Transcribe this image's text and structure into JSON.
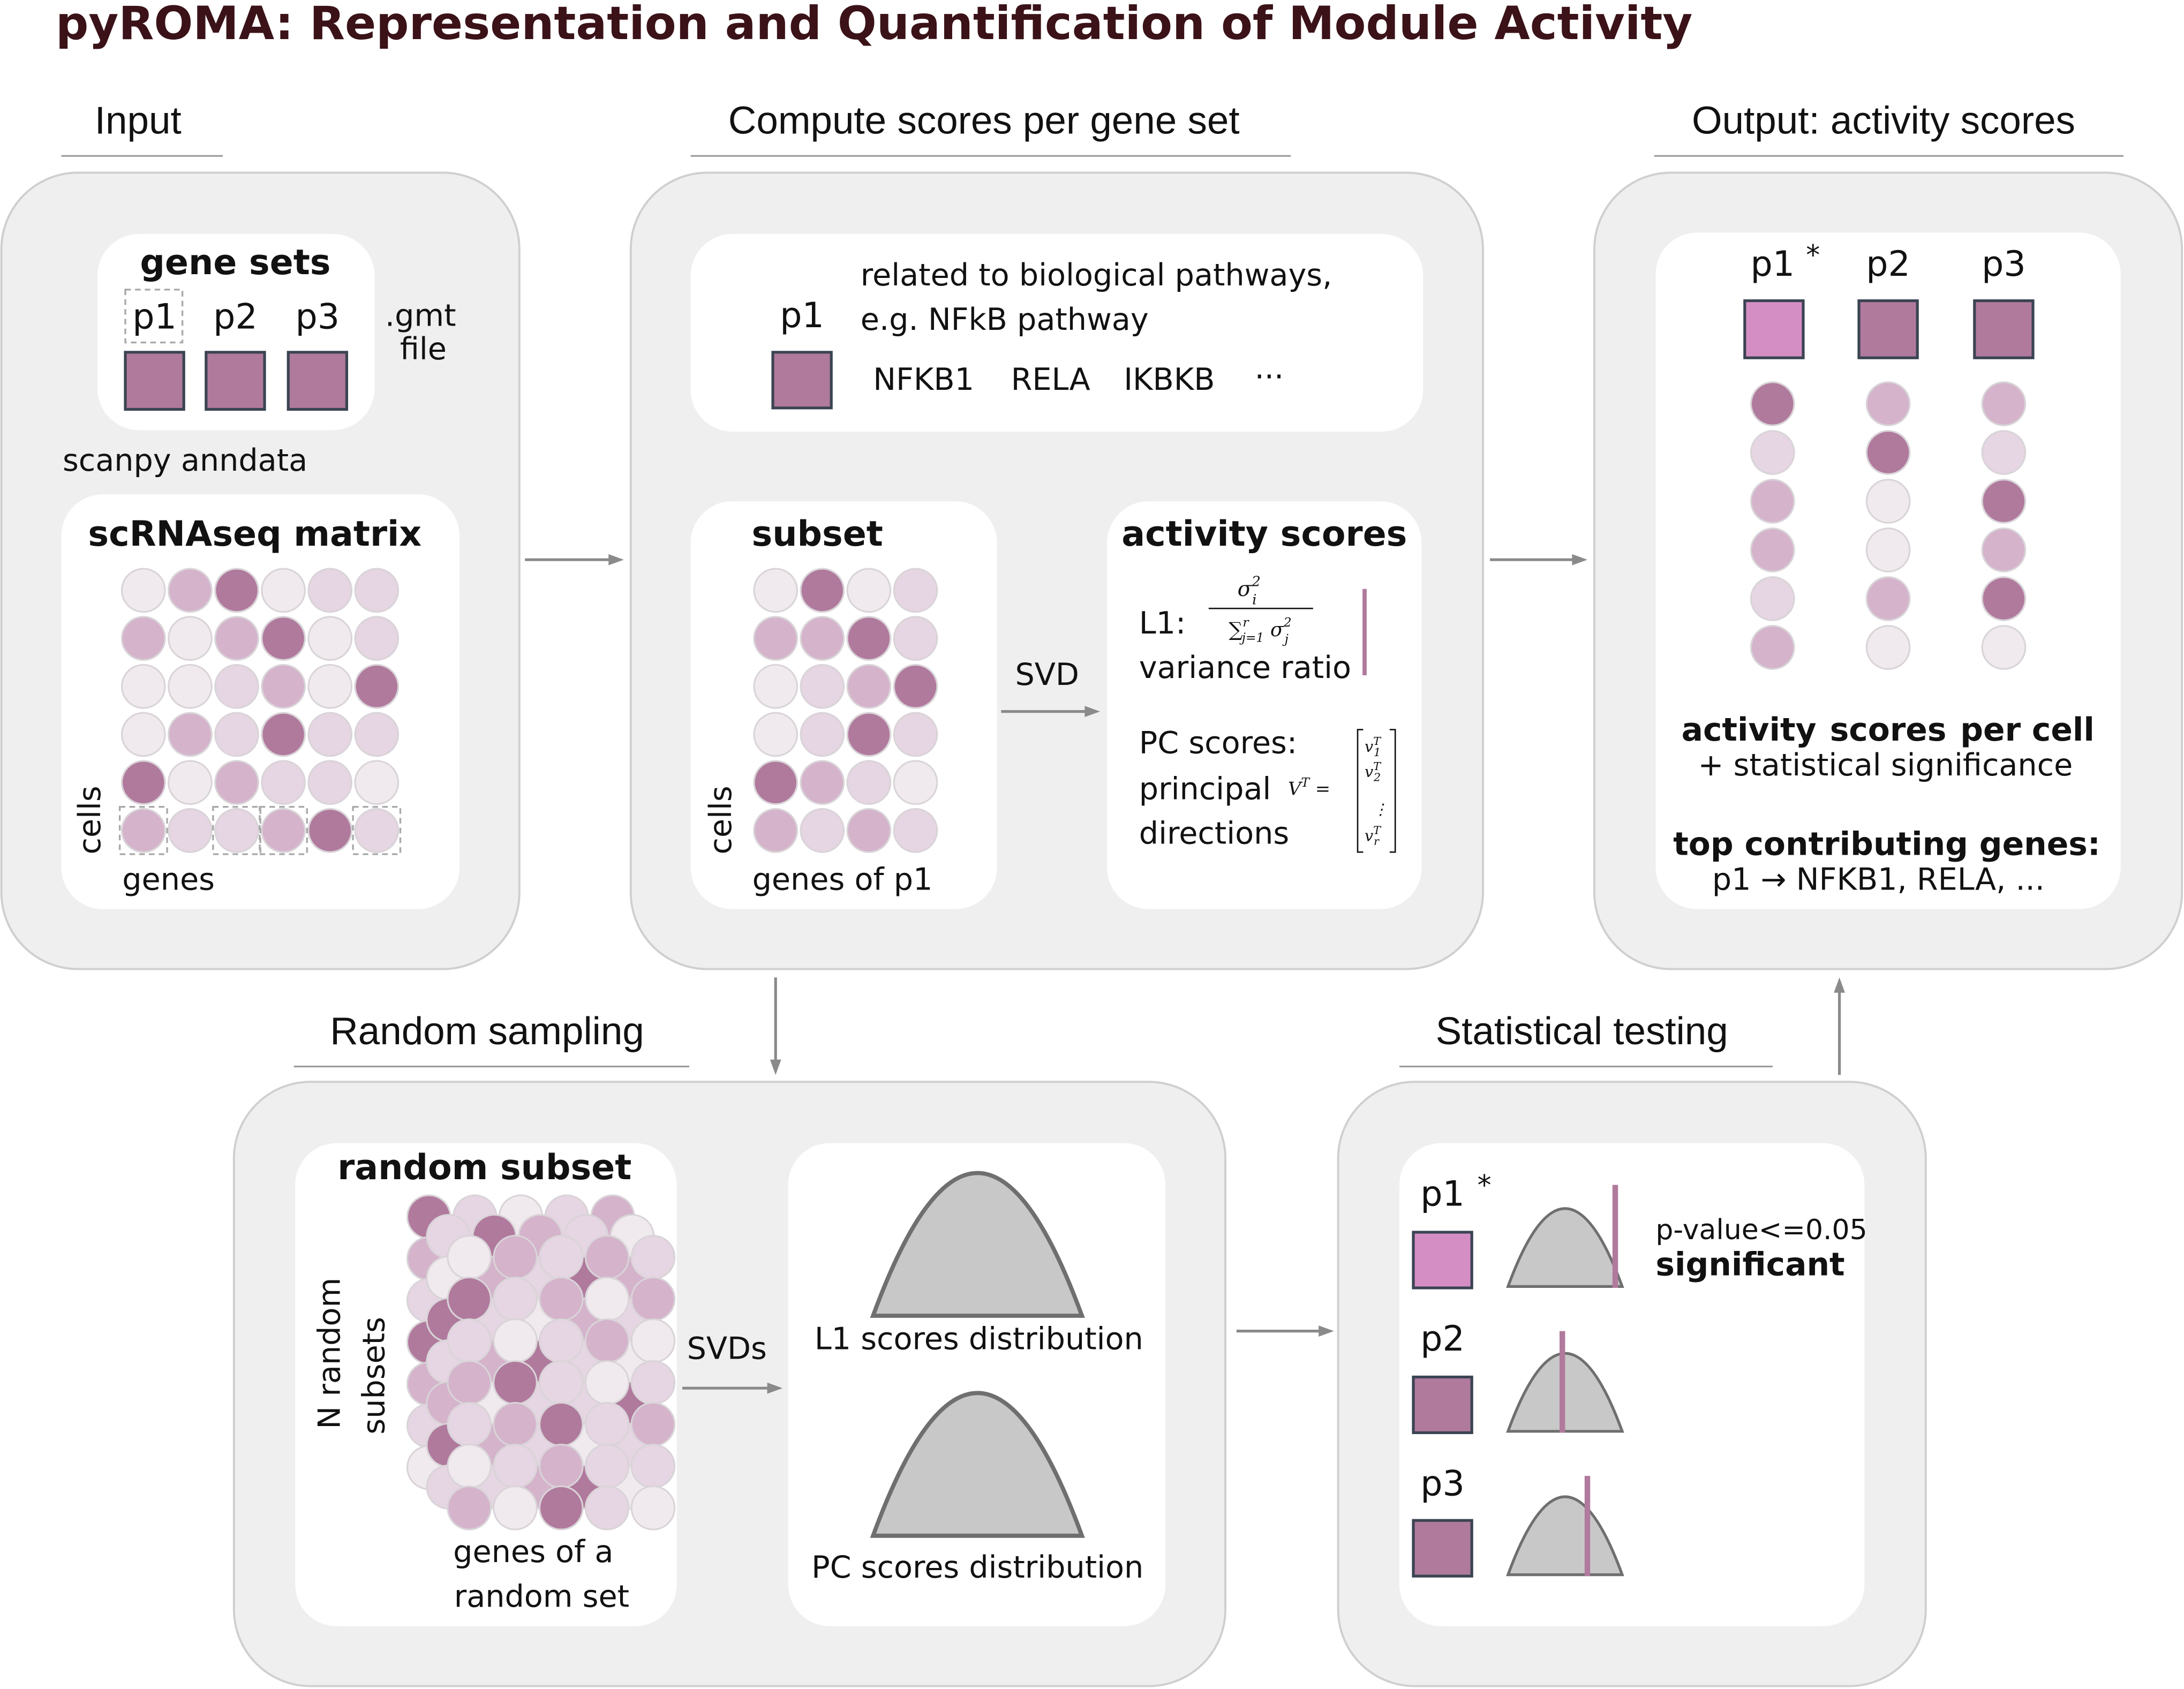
{
  "title": "pyROMA: Representation and Quantification of Module Activity",
  "sections": {
    "input": "Input",
    "compute": "Compute scores per gene set",
    "output": "Output: activity scores",
    "random": "Random sampling",
    "stat": "Statistical testing"
  },
  "input": {
    "gene_sets_title": "gene sets",
    "p1": "p1",
    "p2": "p2",
    "p3": "p3",
    "gmt1": ".gmt",
    "gmt2": "file",
    "anndata": "scanpy anndata",
    "matrix_title": "scRNAseq matrix",
    "cells": "cells",
    "genes": "genes"
  },
  "compute": {
    "p1": "p1",
    "desc1": "related to biological pathways,",
    "desc2": "e.g. NFkB pathway",
    "g1": "NFKB1",
    "g2": "RELA",
    "g3": "IKBKB",
    "g4": "···",
    "subset_title": "subset",
    "cells": "cells",
    "genes_of_p1": "genes of p1",
    "svd": "SVD",
    "activity_title": "activity scores",
    "l1": "L1:",
    "variance_ratio": "variance ratio",
    "pc_scores": "PC scores:",
    "principal": "principal",
    "directions": "directions"
  },
  "output": {
    "p1": "p1",
    "star": "*",
    "p2": "p2",
    "p3": "p3",
    "act1": "activity",
    "act2": "scores",
    "act3": "per cell",
    "stat_sig": "+ statistical significance",
    "top_title": "top contributing genes:",
    "top_line": "p1 → NFKB1, RELA, ..."
  },
  "random": {
    "subset_title": "random subset",
    "n_random": "N random",
    "subsets": "subsets",
    "genes_of_a": "genes of a",
    "random_set": "random set",
    "svds": "SVDs",
    "l1_dist": "L1 scores distribution",
    "pc_dist": "PC scores distribution"
  },
  "stat": {
    "p1": "p1",
    "star": "*",
    "p2": "p2",
    "p3": "p3",
    "pvalue": "p-value<=0.05",
    "significant": "significant"
  },
  "colors": {
    "dark": "#b07a9d",
    "mid": "#d4b3cb",
    "light": "#e6d5e2",
    "pale": "#f0eaef",
    "significant": "#d58ec3",
    "panel": "#efefef"
  }
}
